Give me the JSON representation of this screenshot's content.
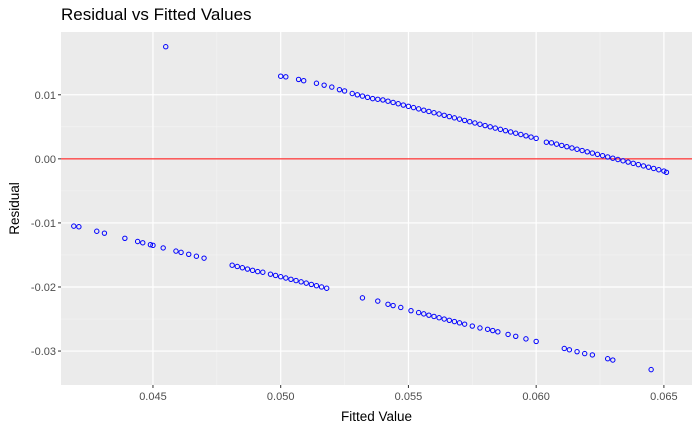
{
  "chart_data": {
    "type": "scatter",
    "title": "Residual vs Fitted Values",
    "xlabel": "Fitted Value",
    "ylabel": "Residual",
    "xlim": [
      0.0414,
      0.0661
    ],
    "ylim": [
      -0.0353,
      0.0198
    ],
    "x_ticks": [
      0.045,
      0.05,
      0.055,
      0.06,
      0.065
    ],
    "x_tick_labels": [
      "0.045",
      "0.050",
      "0.055",
      "0.060",
      "0.065"
    ],
    "y_ticks": [
      -0.03,
      -0.02,
      -0.01,
      0.0,
      0.01
    ],
    "y_tick_labels": [
      "-0.03",
      "-0.02",
      "-0.01",
      "0.00",
      "0.01"
    ],
    "grid": true,
    "background": "#ebebeb",
    "point_color": "#0000ff",
    "reference_line": {
      "y": 0.0,
      "color": "#ff0000"
    },
    "series": [
      {
        "points": [
          [
            0.0455,
            0.0175
          ],
          [
            0.05,
            0.0129
          ],
          [
            0.0502,
            0.0128
          ],
          [
            0.0507,
            0.0124
          ],
          [
            0.0509,
            0.0122
          ],
          [
            0.0514,
            0.0118
          ],
          [
            0.0517,
            0.0115
          ],
          [
            0.052,
            0.0112
          ],
          [
            0.0523,
            0.0108
          ],
          [
            0.0525,
            0.0106
          ],
          [
            0.0528,
            0.0102
          ],
          [
            0.053,
            0.01
          ],
          [
            0.0532,
            0.0098
          ],
          [
            0.0534,
            0.0096
          ],
          [
            0.0536,
            0.0094
          ],
          [
            0.0538,
            0.0093
          ],
          [
            0.054,
            0.0092
          ],
          [
            0.0542,
            0.009
          ],
          [
            0.0544,
            0.0088
          ],
          [
            0.0546,
            0.0086
          ],
          [
            0.0548,
            0.0084
          ],
          [
            0.055,
            0.0082
          ],
          [
            0.0552,
            0.008
          ],
          [
            0.0554,
            0.0078
          ],
          [
            0.0556,
            0.0076
          ],
          [
            0.0558,
            0.0074
          ],
          [
            0.056,
            0.0072
          ],
          [
            0.0562,
            0.007
          ],
          [
            0.0564,
            0.0068
          ],
          [
            0.0566,
            0.0066
          ],
          [
            0.0568,
            0.0064
          ],
          [
            0.057,
            0.0062
          ],
          [
            0.0572,
            0.006
          ],
          [
            0.0574,
            0.0058
          ],
          [
            0.0576,
            0.0056
          ],
          [
            0.0578,
            0.0054
          ],
          [
            0.058,
            0.0052
          ],
          [
            0.0582,
            0.005
          ],
          [
            0.0584,
            0.0048
          ],
          [
            0.0586,
            0.0046
          ],
          [
            0.0588,
            0.0044
          ],
          [
            0.059,
            0.0042
          ],
          [
            0.0592,
            0.004
          ],
          [
            0.0594,
            0.0038
          ],
          [
            0.0596,
            0.0036
          ],
          [
            0.0598,
            0.0034
          ],
          [
            0.06,
            0.0032
          ],
          [
            0.0604,
            0.0026
          ],
          [
            0.0606,
            0.0025
          ],
          [
            0.0608,
            0.0023
          ],
          [
            0.061,
            0.0021
          ],
          [
            0.0612,
            0.0019
          ],
          [
            0.0614,
            0.0017
          ],
          [
            0.0616,
            0.0015
          ],
          [
            0.0618,
            0.0013
          ],
          [
            0.062,
            0.0011
          ],
          [
            0.0622,
            0.0009
          ],
          [
            0.0624,
            0.0007
          ],
          [
            0.0626,
            0.0005
          ],
          [
            0.0628,
            0.0003
          ],
          [
            0.063,
            0.0001
          ],
          [
            0.0632,
            -0.0001
          ],
          [
            0.0634,
            -0.0003
          ],
          [
            0.0636,
            -0.0005
          ],
          [
            0.0638,
            -0.0007
          ],
          [
            0.064,
            -0.0009
          ],
          [
            0.0642,
            -0.0011
          ],
          [
            0.0644,
            -0.0013
          ],
          [
            0.0646,
            -0.0015
          ],
          [
            0.0648,
            -0.0017
          ],
          [
            0.065,
            -0.0019
          ],
          [
            0.0651,
            -0.0021
          ],
          [
            0.0419,
            -0.0105
          ],
          [
            0.0421,
            -0.0106
          ],
          [
            0.0428,
            -0.0113
          ],
          [
            0.0431,
            -0.0116
          ],
          [
            0.0439,
            -0.0124
          ],
          [
            0.0444,
            -0.0129
          ],
          [
            0.0446,
            -0.0131
          ],
          [
            0.0449,
            -0.0134
          ],
          [
            0.045,
            -0.0135
          ],
          [
            0.0454,
            -0.0139
          ],
          [
            0.0459,
            -0.0144
          ],
          [
            0.0461,
            -0.0146
          ],
          [
            0.0464,
            -0.0149
          ],
          [
            0.0467,
            -0.0152
          ],
          [
            0.047,
            -0.0155
          ],
          [
            0.0481,
            -0.0166
          ],
          [
            0.0483,
            -0.0168
          ],
          [
            0.0485,
            -0.017
          ],
          [
            0.0487,
            -0.0172
          ],
          [
            0.0489,
            -0.0174
          ],
          [
            0.0491,
            -0.0176
          ],
          [
            0.0493,
            -0.0177
          ],
          [
            0.0496,
            -0.018
          ],
          [
            0.0498,
            -0.0182
          ],
          [
            0.05,
            -0.0184
          ],
          [
            0.0502,
            -0.0186
          ],
          [
            0.0504,
            -0.0188
          ],
          [
            0.0506,
            -0.019
          ],
          [
            0.0508,
            -0.0192
          ],
          [
            0.051,
            -0.0194
          ],
          [
            0.0512,
            -0.0196
          ],
          [
            0.0514,
            -0.0198
          ],
          [
            0.0516,
            -0.02
          ],
          [
            0.0518,
            -0.0202
          ],
          [
            0.0532,
            -0.0217
          ],
          [
            0.0538,
            -0.0222
          ],
          [
            0.0542,
            -0.0227
          ],
          [
            0.0544,
            -0.0229
          ],
          [
            0.0547,
            -0.0232
          ],
          [
            0.0551,
            -0.0237
          ],
          [
            0.0554,
            -0.024
          ],
          [
            0.0556,
            -0.0242
          ],
          [
            0.0558,
            -0.0244
          ],
          [
            0.056,
            -0.0246
          ],
          [
            0.0562,
            -0.0248
          ],
          [
            0.0564,
            -0.025
          ],
          [
            0.0566,
            -0.0252
          ],
          [
            0.0568,
            -0.0254
          ],
          [
            0.057,
            -0.0256
          ],
          [
            0.0572,
            -0.0258
          ],
          [
            0.0575,
            -0.0261
          ],
          [
            0.0578,
            -0.0264
          ],
          [
            0.0581,
            -0.0266
          ],
          [
            0.0583,
            -0.0268
          ],
          [
            0.0585,
            -0.027
          ],
          [
            0.0589,
            -0.0274
          ],
          [
            0.0592,
            -0.0277
          ],
          [
            0.0596,
            -0.0281
          ],
          [
            0.06,
            -0.0285
          ],
          [
            0.0611,
            -0.0296
          ],
          [
            0.0613,
            -0.0298
          ],
          [
            0.0616,
            -0.0301
          ],
          [
            0.0619,
            -0.0304
          ],
          [
            0.0622,
            -0.0306
          ],
          [
            0.0628,
            -0.0312
          ],
          [
            0.063,
            -0.0314
          ],
          [
            0.0645,
            -0.0329
          ]
        ]
      }
    ]
  }
}
